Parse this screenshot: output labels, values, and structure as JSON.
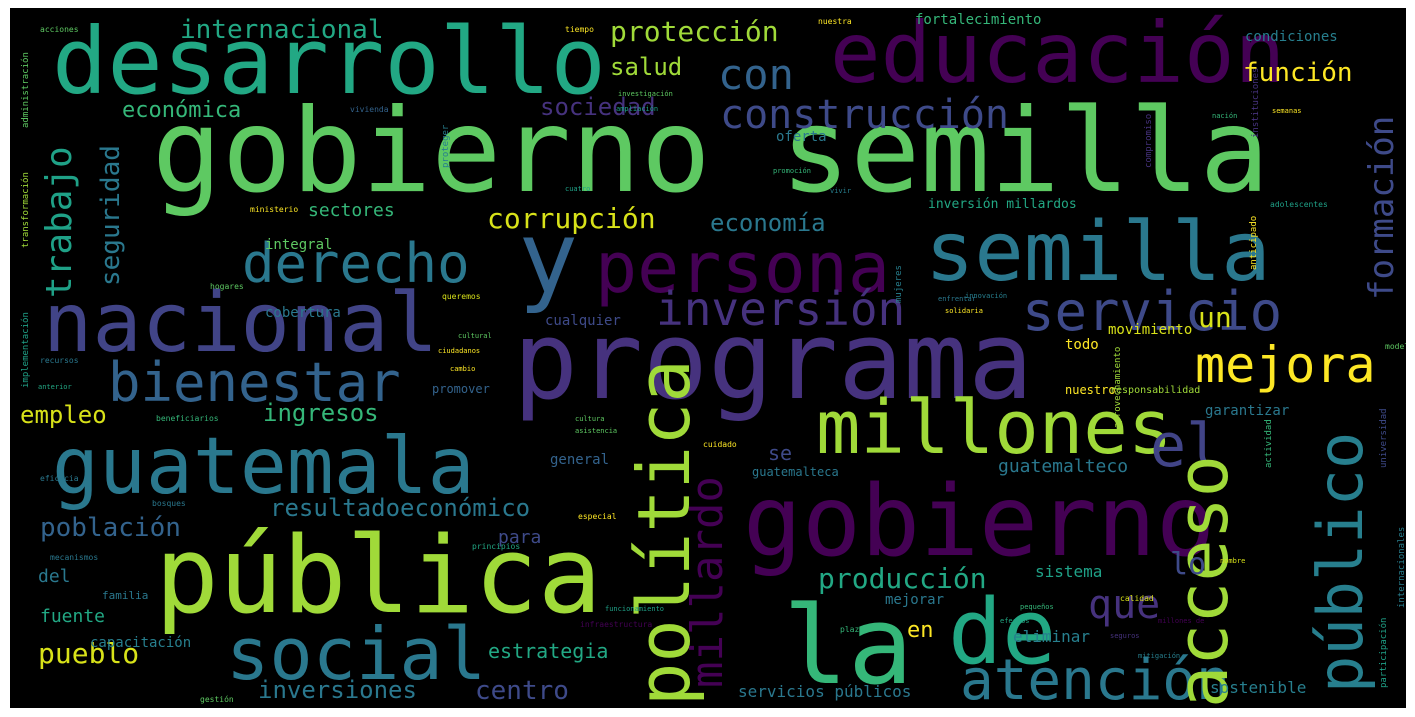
{
  "palette": {
    "purple": "#440154",
    "indigo": "#46327e",
    "blue": "#365c8d",
    "teal": "#277f8e",
    "cyan": "#1fa187",
    "green": "#4ac16d",
    "lime": "#a0da39",
    "yellow": "#fde725"
  },
  "words": {
    "w01": "gobierno semilla",
    "w02": "programa",
    "w03": "pública",
    "w04": "guatemala",
    "w05": "gobierno",
    "w06": "desarrollo",
    "w07": "educación",
    "w08": "nacional",
    "w09": "semilla",
    "w10": "y",
    "w11": "persona",
    "w12": "la",
    "w13": "de",
    "w14": "social",
    "w15": "millones",
    "w16": "bienestar",
    "w17": "derecho",
    "w18": "política",
    "w19": "acceso",
    "w20": "público",
    "w21": "atención",
    "w22": "servicio",
    "w23": "construcción",
    "w24": "inversión",
    "w25": "mejora",
    "w26": "el",
    "w27": "formación",
    "w28": "millardo",
    "w29": "con",
    "w30": "trabajo",
    "w31": "seguridad",
    "w32": "internacional",
    "w33": "protección",
    "w34": "salud",
    "w35": "sociedad",
    "w36": "económica",
    "w37": "corrupción",
    "w38": "economía",
    "w39": "función",
    "w40": "empleo",
    "w41": "ingresos",
    "w42": "resultadoeconómico",
    "w43": "población",
    "w44": "producción",
    "w45": "que",
    "w46": "pueblo",
    "w47": "inversiones",
    "w48": "centro",
    "w49": "en",
    "w50": "lo",
    "w51": "un",
    "w52": "sectores",
    "w53": "estrategia",
    "w54": "guatemalteco",
    "w55": "sostenible",
    "w56": "servicios públicos",
    "w57": "capacitación",
    "w58": "fuente",
    "w59": "del",
    "w60": "para",
    "w61": "se",
    "w62": "integral",
    "w63": "cobertura",
    "w64": "todo",
    "w65": "movimiento",
    "w66": "garantizar",
    "w67": "nuestro",
    "w68": "inversión millardos",
    "w69": "eliminar",
    "w70": "mejorar",
    "w71": "sistema",
    "w72": "general",
    "w73": "cualquier",
    "w74": "oferta",
    "w75": "fortalecimiento",
    "w76": "condiciones",
    "w77": "guatemalteca",
    "w78": "familia",
    "w79": "promover",
    "w80": "responsabilidad",
    "w81": "acciones",
    "w82": "nuestra",
    "w83": "tiempo",
    "w84": "ministerio",
    "w85": "hogares",
    "w86": "queremos",
    "w87": "ciudadanos",
    "w88": "cultural",
    "w89": "principios",
    "w90": "especial",
    "w91": "infraestructura",
    "w92": "adolescentes",
    "w93": "modelo",
    "w94": "calidad",
    "w95": "cuidado",
    "w96": "plazo",
    "w97": "gestión",
    "w98": "vivienda",
    "w99": "recursos",
    "w100": "eficacia",
    "w101": "bosques",
    "w102": "mecanismos",
    "w103": "administración",
    "w104": "transformación",
    "w105": "implementación",
    "w106": "aprovechamiento",
    "w107": "innovación",
    "w108": "cambio",
    "w109": "cultura",
    "w110": "asistencia",
    "w111": "investigación",
    "w112": "ampliación",
    "w113": "promoción",
    "w114": "cuatro",
    "w115": "vivir",
    "w116": "compromiso",
    "w117": "anticipado",
    "w118": "nación",
    "w119": "semanas",
    "w120": "beneficiarios",
    "w121": "nombre",
    "w122": "participación",
    "w123": "mujeres",
    "w124": "internacionales",
    "w125": "pequeños",
    "w126": "efectos",
    "w127": "anterior",
    "w128": "proteger",
    "w129": "enfrentar",
    "w130": "mitigación",
    "w131": "instituciones",
    "w132": "millones de",
    "w133": "actividad",
    "w134": "universidad",
    "w135": "seguros",
    "w136": "solidaria",
    "w137": "funcionamiento"
  }
}
